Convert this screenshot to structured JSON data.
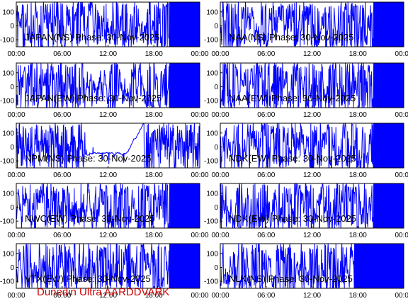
{
  "footer_text": "Dunedin Ultra AARDDVARK",
  "colors": {
    "trace": "#0000ff",
    "footer": "#cc0000",
    "axes": "#000000"
  },
  "chart_data": [
    {
      "type": "line",
      "title": "JAPAN(NS) Phase: 30-Nov-2025",
      "ylim": [
        -150,
        170
      ],
      "yticks": [
        100,
        0,
        -100
      ],
      "xlim": [
        "00:00",
        "24:00"
      ],
      "xticks": [
        "00:00",
        "06:00",
        "12:00",
        "18:00",
        "00:00"
      ],
      "pattern": "dense-noise-saturating-after-20h"
    },
    {
      "type": "line",
      "title": "NAA(NS) Phase: 30-Nov-2025",
      "ylim": [
        -150,
        170
      ],
      "yticks": [
        100,
        0,
        -100
      ],
      "xlim": [
        "00:00",
        "24:00"
      ],
      "xticks": [
        "00:00",
        "06:00",
        "12:00",
        "18:00",
        "00:00"
      ],
      "pattern": "dense-noise-saturating-after-20h"
    },
    {
      "type": "line",
      "title": "JAPAN(EW) Phase: 30-Nov-2025",
      "ylim": [
        -150,
        170
      ],
      "yticks": [
        100,
        0,
        -100
      ],
      "xlim": [
        "00:00",
        "24:00"
      ],
      "xticks": [
        "00:00",
        "06:00",
        "12:00",
        "18:00",
        "00:00"
      ],
      "pattern": "dense-noise-saturating-after-20h"
    },
    {
      "type": "line",
      "title": "NAA(EW) Phase: 30-Nov-2025",
      "ylim": [
        -150,
        170
      ],
      "yticks": [
        100,
        0,
        -100
      ],
      "xlim": [
        "00:00",
        "24:00"
      ],
      "xticks": [
        "00:00",
        "06:00",
        "12:00",
        "18:00",
        "00:00"
      ],
      "pattern": "dense-noise-saturating-after-20h"
    },
    {
      "type": "line",
      "title": "NPM(NS) Phase: 30-Nov-2025",
      "ylim": [
        -150,
        170
      ],
      "yticks": [
        100,
        0,
        -100
      ],
      "xlim": [
        "00:00",
        "24:00"
      ],
      "xticks": [
        "00:00",
        "06:00",
        "12:00",
        "18:00",
        "00:00"
      ],
      "pattern": "wrapping-phase-with-quiet-midday"
    },
    {
      "type": "line",
      "title": "NDK(EW) Phase: 30-Nov-2025",
      "ylim": [
        -150,
        170
      ],
      "yticks": [
        100,
        0,
        -100
      ],
      "xlim": [
        "00:00",
        "24:00"
      ],
      "xticks": [
        "00:00",
        "06:00",
        "12:00",
        "18:00",
        "00:00"
      ],
      "pattern": "dense-noise-saturating-after-20h"
    },
    {
      "type": "line",
      "title": "NWC(EW) Phase: 30-Nov-2025",
      "ylim": [
        -150,
        170
      ],
      "yticks": [
        100,
        0,
        -100
      ],
      "xlim": [
        "00:00",
        "24:00"
      ],
      "xticks": [
        "00:00",
        "06:00",
        "12:00",
        "18:00",
        "00:00"
      ],
      "pattern": "dense-noise-saturating-after-20h"
    },
    {
      "type": "line",
      "title": "NDK(EW) Phase: 30-Nov-2025",
      "ylim": [
        -150,
        170
      ],
      "yticks": [
        100,
        0,
        -100
      ],
      "xlim": [
        "00:00",
        "24:00"
      ],
      "xticks": [
        "00:00",
        "06:00",
        "12:00",
        "18:00",
        "00:00"
      ],
      "pattern": "dense-noise-saturating-after-20h"
    },
    {
      "type": "line",
      "title": "VTX(EW) Phase: 30-Nov-2025",
      "ylim": [
        -150,
        170
      ],
      "yticks": [
        100,
        0,
        -100
      ],
      "xlim": [
        "00:00",
        "24:00"
      ],
      "xticks": [
        "00:00",
        "06:00",
        "12:00",
        "18:00",
        "00:00"
      ],
      "pattern": "dense-noise-saturating-after-20h"
    },
    {
      "type": "line",
      "title": "NLK(NS) Phase: 30-Nov-2025",
      "ylim": [
        -150,
        170
      ],
      "yticks": [
        100,
        0,
        -100
      ],
      "xlim": [
        "00:00",
        "24:00"
      ],
      "xticks": [
        "00:00",
        "06:00",
        "12:00",
        "18:00",
        "00:00"
      ],
      "pattern": "dense-noise-saturating-after-17h"
    }
  ]
}
